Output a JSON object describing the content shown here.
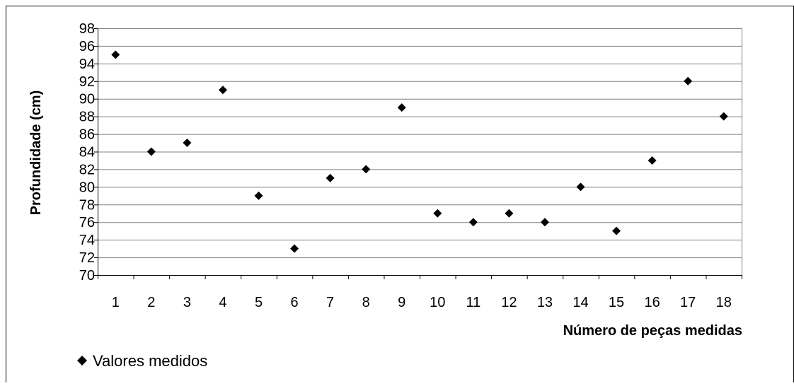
{
  "chart_data": {
    "type": "scatter",
    "xlabel": "Número de peças medidas",
    "ylabel": "Profundidade (cm)",
    "ylim": [
      70,
      98
    ],
    "ystep": 2,
    "categories": [
      "1",
      "2",
      "3",
      "4",
      "5",
      "6",
      "7",
      "8",
      "9",
      "10",
      "11",
      "12",
      "13",
      "14",
      "15",
      "16",
      "17",
      "18"
    ],
    "series": [
      {
        "name": "Valores medidos",
        "marker": "diamond",
        "color": "#000000",
        "values": [
          95,
          84,
          85,
          91,
          79,
          73,
          81,
          82,
          89,
          77,
          76,
          77,
          76,
          80,
          75,
          83,
          92,
          88
        ]
      }
    ],
    "grid": true,
    "legend_position": "bottom-left"
  }
}
